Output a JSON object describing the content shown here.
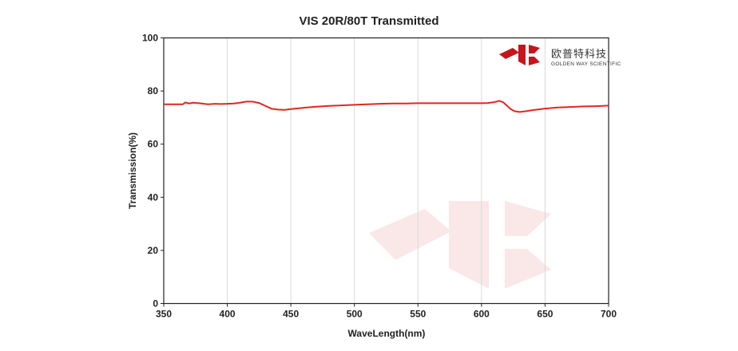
{
  "chart_data": {
    "type": "line",
    "title": "VIS 20R/80T Transmitted",
    "xlabel": "WaveLength(nm)",
    "ylabel": "Transmission(%)",
    "xlim": [
      350,
      700
    ],
    "ylim": [
      0,
      100
    ],
    "xticks": [
      350,
      400,
      450,
      500,
      550,
      600,
      650,
      700
    ],
    "yticks": [
      0,
      20,
      40,
      60,
      80,
      100
    ],
    "grid": "vertical",
    "series": [
      {
        "color": "#e0281e",
        "x": [
          350,
          360,
          365,
          367,
          370,
          373,
          378,
          385,
          390,
          395,
          400,
          405,
          410,
          415,
          420,
          425,
          430,
          435,
          440,
          445,
          450,
          460,
          470,
          480,
          490,
          500,
          510,
          520,
          530,
          540,
          550,
          560,
          570,
          580,
          590,
          600,
          605,
          610,
          614,
          617,
          620,
          623,
          626,
          630,
          635,
          640,
          645,
          650,
          660,
          670,
          680,
          690,
          700
        ],
        "y": [
          75.0,
          75.0,
          75.0,
          75.7,
          75.3,
          75.6,
          75.4,
          75.0,
          75.2,
          75.1,
          75.2,
          75.3,
          75.6,
          76.0,
          76.0,
          75.5,
          74.4,
          73.3,
          73.0,
          72.9,
          73.2,
          73.7,
          74.1,
          74.4,
          74.6,
          74.8,
          75.0,
          75.2,
          75.3,
          75.3,
          75.4,
          75.4,
          75.4,
          75.4,
          75.4,
          75.4,
          75.5,
          75.8,
          76.3,
          75.8,
          74.5,
          73.2,
          72.4,
          72.1,
          72.4,
          72.8,
          73.1,
          73.4,
          73.8,
          74.0,
          74.2,
          74.3,
          74.5
        ]
      }
    ]
  },
  "logo": {
    "cn": "欧普特科技",
    "en": "GOLDEN WAY SCIENTIFIC",
    "color": "#c4161c"
  }
}
